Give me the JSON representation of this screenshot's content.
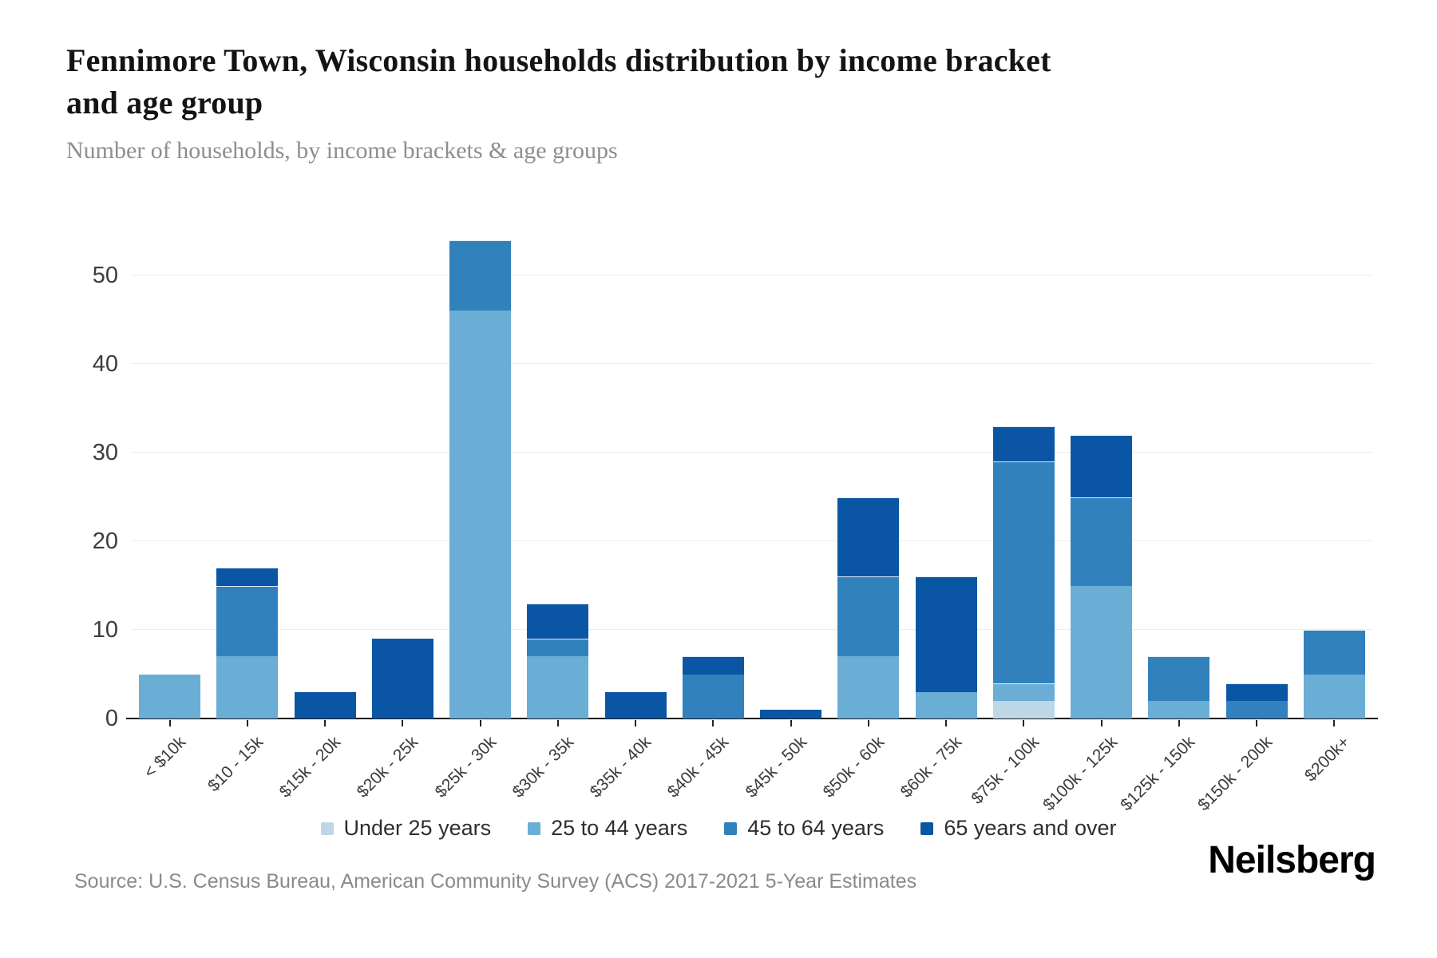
{
  "header": {
    "title": "Fennimore Town, Wisconsin households distribution by income bracket and age group",
    "subtitle": "Number of households, by income brackets & age groups"
  },
  "footer": {
    "source": "Source: U.S. Census Bureau, American Community Survey (ACS) 2017-2021 5-Year Estimates",
    "brand": "Neilsberg"
  },
  "chart_data": {
    "type": "bar",
    "stacked": true,
    "title": "Fennimore Town, Wisconsin households distribution by income bracket and age group",
    "subtitle": "Number of households, by income brackets & age groups",
    "xlabel": "",
    "ylabel": "Number of households",
    "grid": "horizontal",
    "legend_position": "bottom",
    "y_ticks": [
      0,
      10,
      20,
      30,
      40,
      50
    ],
    "ylim": [
      0,
      57.8
    ],
    "categories": [
      "< $10k",
      "$10 - 15k",
      "$15k - 20k",
      "$20k - 25k",
      "$25k - 30k",
      "$30k - 35k",
      "$35k - 40k",
      "$40k - 45k",
      "$45k - 50k",
      "$50k - 60k",
      "$60k - 75k",
      "$75k - 100k",
      "$100k - 125k",
      "$125k - 150k",
      "$150k - 200k",
      "$200k+"
    ],
    "series": [
      {
        "name": "Under 25 years",
        "color": "#bdd7e7",
        "values": [
          0,
          0,
          0,
          0,
          0,
          0,
          0,
          0,
          0,
          0,
          0,
          2,
          0,
          0,
          0,
          0
        ]
      },
      {
        "name": "25 to 44 years",
        "color": "#6aaed6",
        "values": [
          5,
          7,
          0,
          0,
          46,
          7,
          0,
          0,
          0,
          7,
          3,
          2,
          15,
          2,
          0,
          5
        ]
      },
      {
        "name": "45 to 64 years",
        "color": "#3181bd",
        "values": [
          0,
          8,
          0,
          0,
          8,
          2,
          0,
          5,
          0,
          9,
          0,
          25,
          10,
          5,
          2,
          5
        ]
      },
      {
        "name": "65 years and over",
        "color": "#0b56a4",
        "values": [
          0,
          2,
          3,
          9,
          0,
          4,
          3,
          2,
          1,
          9,
          13,
          4,
          7,
          0,
          2,
          0
        ]
      }
    ],
    "totals": [
      5,
      17,
      3,
      9,
      54,
      13,
      3,
      7,
      1,
      25,
      16,
      33,
      32,
      7,
      4,
      10
    ]
  }
}
